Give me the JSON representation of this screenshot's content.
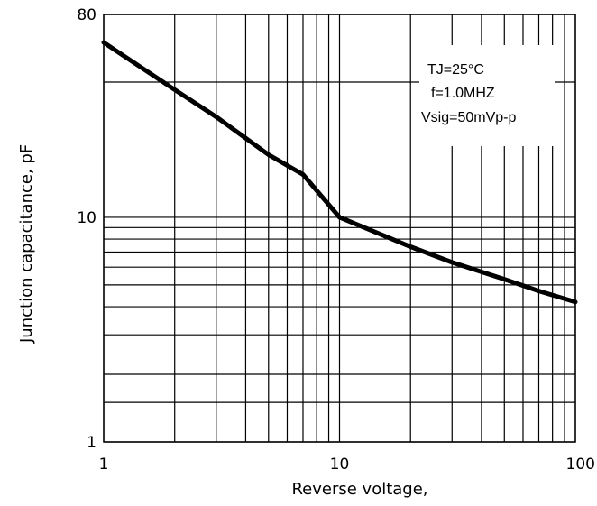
{
  "chart_data": {
    "type": "line",
    "title": "",
    "xlabel": "Reverse voltage,",
    "ylabel": "Junction  capacitance, pF",
    "x_scale": "log",
    "y_scale": "log",
    "xlim": [
      1,
      100
    ],
    "ylim": [
      1,
      80
    ],
    "x_ticks": [
      1,
      10,
      100
    ],
    "x_tick_labels": [
      "1",
      "10",
      "100"
    ],
    "y_ticks": [
      1,
      10,
      80
    ],
    "y_tick_labels": [
      "1",
      "10",
      "80"
    ],
    "x_gridlines": [
      1,
      2,
      3,
      4,
      5,
      6,
      7,
      8,
      9,
      10,
      20,
      30,
      40,
      50,
      60,
      70,
      80,
      90,
      100
    ],
    "y_gridlines": [
      1,
      1.5,
      2,
      3,
      4,
      5,
      6,
      7,
      8,
      9,
      10,
      40,
      80
    ],
    "grid": true,
    "annotations": [
      "TJ=25°C",
      "f=1.0MHZ",
      "Vsig=50mVp-p"
    ],
    "series": [
      {
        "x": [
          1,
          2,
          3,
          5,
          7,
          10,
          20,
          30,
          50,
          70,
          100
        ],
        "y": [
          60,
          37,
          28,
          19,
          15.5,
          10,
          7.4,
          6.3,
          5.3,
          4.7,
          4.2
        ]
      }
    ]
  },
  "colors": {
    "line": "#000000",
    "grid": "#000000",
    "background": "#ffffff"
  }
}
